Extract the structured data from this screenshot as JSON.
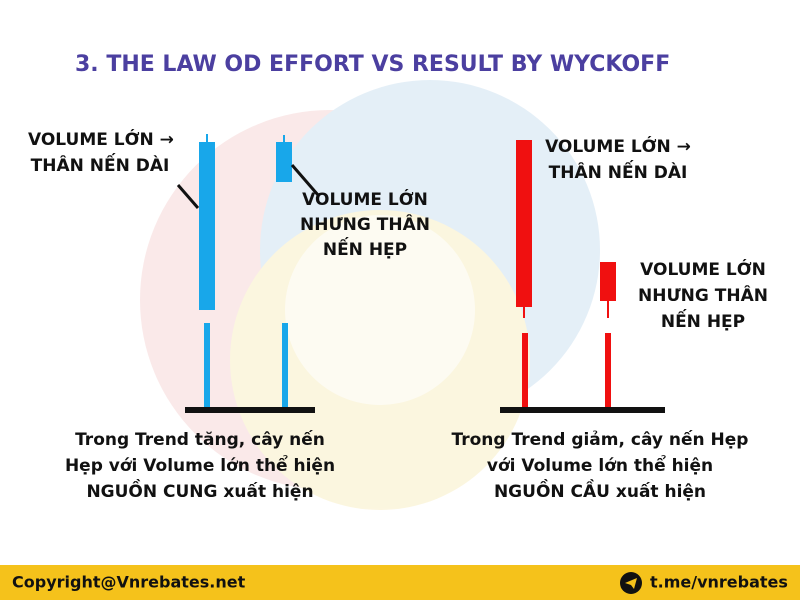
{
  "title": "3. THE LAW OD EFFORT VS RESULT BY WYCKOFF",
  "left": {
    "label_long": [
      "VOLUME LỚN →",
      "THÂN NẾN DÀI"
    ],
    "label_narrow": [
      "VOLUME LỚN",
      "NHƯNG THÂN",
      "NẾN HẸP"
    ],
    "caption": [
      "Trong Trend tăng, cây nến",
      "Hẹp với Volume lớn thể hiện",
      "NGUỒN CUNG xuất hiện"
    ]
  },
  "right": {
    "label_long": [
      "VOLUME LỚN →",
      "THÂN NẾN DÀI"
    ],
    "label_narrow": [
      "VOLUME LỚN",
      "NHƯNG THÂN",
      "NẾN HẸP"
    ],
    "caption": [
      "Trong Trend giảm, cây nến Hẹp",
      "với Volume lớn thể hiện",
      "NGUỒN CẦU xuất hiện"
    ]
  },
  "footer": {
    "copyright": "Copyright@Vnrebates.net",
    "link": "t.me/vnrebates"
  }
}
